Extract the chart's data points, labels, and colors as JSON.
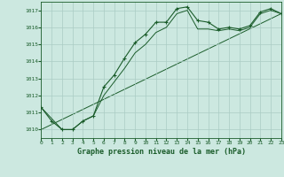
{
  "xlabel": "Graphe pression niveau de la mer (hPa)",
  "background_color": "#cce8e0",
  "grid_color": "#aaccC4",
  "line_color": "#1a5c2a",
  "xlim": [
    0,
    23
  ],
  "ylim": [
    1009.5,
    1017.5
  ],
  "yticks": [
    1010,
    1011,
    1012,
    1013,
    1014,
    1015,
    1016,
    1017
  ],
  "xticks": [
    0,
    1,
    2,
    3,
    4,
    5,
    6,
    7,
    8,
    9,
    10,
    11,
    12,
    13,
    14,
    15,
    16,
    17,
    18,
    19,
    20,
    21,
    22,
    23
  ],
  "series1_x": [
    0,
    1,
    2,
    3,
    4,
    5,
    6,
    7,
    8,
    9,
    10,
    11,
    12,
    13,
    14,
    15,
    16,
    17,
    18,
    19,
    20,
    21,
    22,
    23
  ],
  "series1_y": [
    1011.3,
    1010.5,
    1010.0,
    1010.0,
    1010.5,
    1010.8,
    1012.5,
    1013.2,
    1014.2,
    1015.1,
    1015.6,
    1016.3,
    1016.3,
    1017.1,
    1017.2,
    1016.4,
    1016.3,
    1015.9,
    1016.0,
    1015.9,
    1016.1,
    1016.9,
    1017.1,
    1016.8
  ],
  "series2_x": [
    0,
    2,
    3,
    4,
    5,
    6,
    7,
    8,
    9,
    10,
    11,
    12,
    13,
    14,
    15,
    16,
    17,
    18,
    19,
    20,
    21,
    22,
    23
  ],
  "series2_y": [
    1011.3,
    1010.0,
    1010.0,
    1010.5,
    1010.8,
    1012.0,
    1012.8,
    1013.6,
    1014.5,
    1015.0,
    1015.7,
    1016.0,
    1016.8,
    1017.0,
    1015.9,
    1015.9,
    1015.8,
    1015.9,
    1015.8,
    1016.0,
    1016.8,
    1017.0,
    1016.8
  ],
  "series3_x": [
    0,
    23
  ],
  "series3_y": [
    1010.0,
    1016.8
  ]
}
